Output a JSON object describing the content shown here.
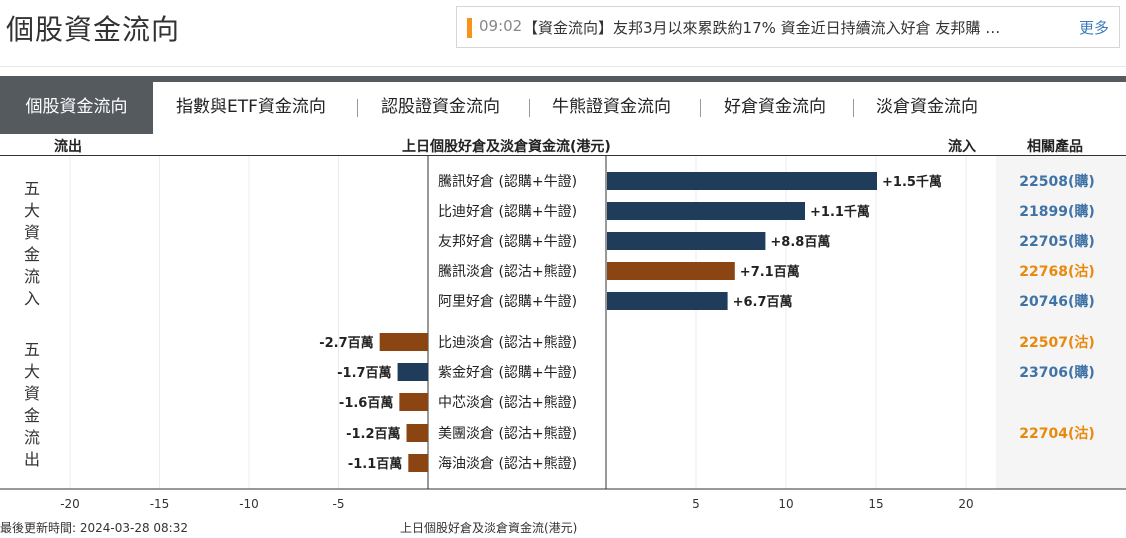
{
  "page_title": "個股資金流向",
  "news": {
    "time": "09:02",
    "text": "【資金流向】友邦3月以來累跌約17% 資金近日持續流入好倉 友邦購 …",
    "more_label": "更多"
  },
  "tabs": [
    {
      "label": "個股資金流向",
      "active": true
    },
    {
      "label": "指數與ETF資金流向"
    },
    {
      "label": "認股證資金流向"
    },
    {
      "label": "牛熊證資金流向"
    },
    {
      "label": "好倉資金流向"
    },
    {
      "label": "淡倉資金流向"
    }
  ],
  "header": {
    "outflow": "流出",
    "chart_title": "上日個股好倉及淡倉資金流(港元)",
    "inflow": "流入",
    "related": "相關產品"
  },
  "side_labels": {
    "inflow_group": "五大資金流入",
    "outflow_group": "五大資金流出"
  },
  "colors": {
    "long": "#1f3d5a",
    "short": "#8b4513",
    "long_product": "#3f73a6",
    "short_product": "#e8890c"
  },
  "chart_data": {
    "type": "bar",
    "orientation": "horizontal",
    "xlim": [
      -20,
      20
    ],
    "x_ticks": [
      "-20",
      "-15",
      "-10",
      "-5",
      "5",
      "10",
      "15",
      "20"
    ],
    "x_tick_values": [
      -20,
      -15,
      -10,
      -5,
      5,
      10,
      15,
      20
    ],
    "xlabel": "上日個股好倉及淡倉資金流(港元)",
    "unit": "百萬港元",
    "rows": [
      {
        "label": "騰訊好倉 (認購+牛證)",
        "value": 15,
        "value_label": "+1.5千萬",
        "type": "long",
        "product": "22508(購)"
      },
      {
        "label": "比迪好倉 (認購+牛證)",
        "value": 11,
        "value_label": "+1.1千萬",
        "type": "long",
        "product": "21899(購)"
      },
      {
        "label": "友邦好倉 (認購+牛證)",
        "value": 8.8,
        "value_label": "+8.8百萬",
        "type": "long",
        "product": "22705(購)"
      },
      {
        "label": "騰訊淡倉 (認沽+熊證)",
        "value": 7.1,
        "value_label": "+7.1百萬",
        "type": "short",
        "product": "22768(沽)"
      },
      {
        "label": "阿里好倉 (認購+牛證)",
        "value": 6.7,
        "value_label": "+6.7百萬",
        "type": "long",
        "product": "20746(購)"
      },
      {
        "label": "比迪淡倉 (認沽+熊證)",
        "value": -2.7,
        "value_label": "-2.7百萬",
        "type": "short",
        "product": "22507(沽)"
      },
      {
        "label": "紫金好倉 (認購+牛證)",
        "value": -1.7,
        "value_label": "-1.7百萬",
        "type": "long",
        "product": "23706(購)"
      },
      {
        "label": "中芯淡倉 (認沽+熊證)",
        "value": -1.6,
        "value_label": "-1.6百萬",
        "type": "short",
        "product": ""
      },
      {
        "label": "美團淡倉 (認沽+熊證)",
        "value": -1.2,
        "value_label": "-1.2百萬",
        "type": "short",
        "product": "22704(沽)"
      },
      {
        "label": "海油淡倉 (認沽+熊證)",
        "value": -1.1,
        "value_label": "-1.1百萬",
        "type": "short",
        "product": ""
      }
    ]
  },
  "footer": {
    "updated": "最後更新時間: 2024-03-28 08:32",
    "axis_caption": "上日個股好倉及淡倉資金流(港元)"
  }
}
